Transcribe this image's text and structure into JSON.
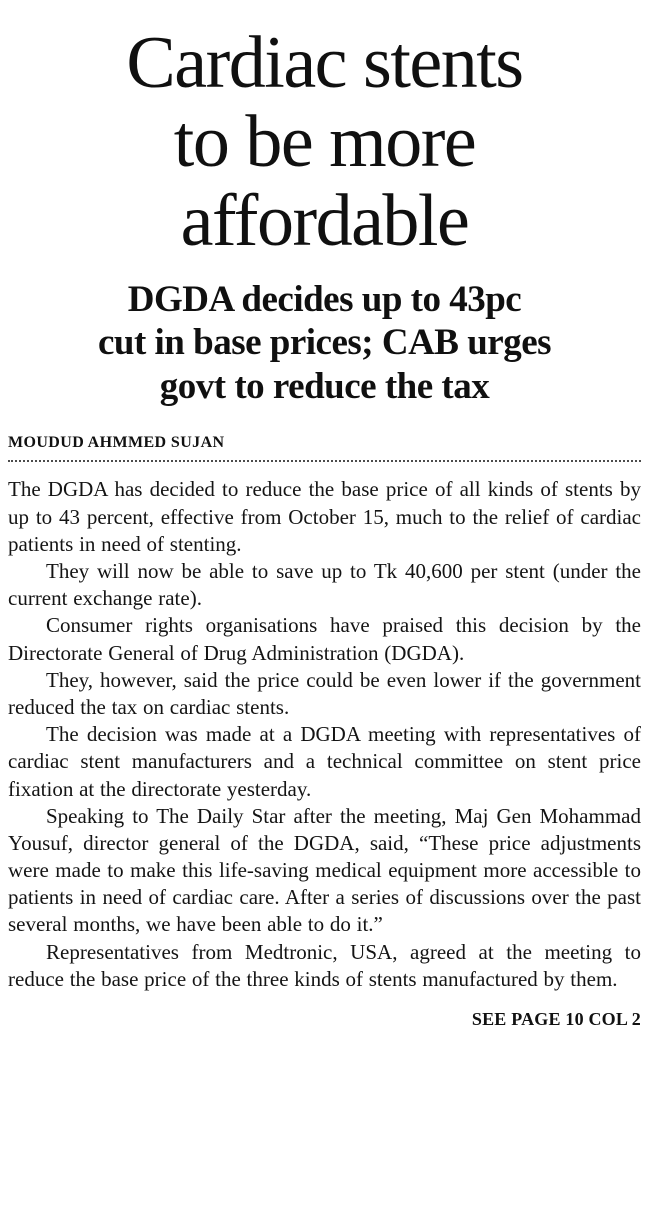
{
  "article": {
    "headline_lines": [
      "Cardiac stents",
      "to be more",
      "affordable"
    ],
    "subheadline_lines": [
      "DGDA decides up to 43pc",
      "cut in base prices; CAB urges",
      "govt to reduce the tax"
    ],
    "byline": "MOUDUD AHMMED SUJAN",
    "paragraphs": [
      "The DGDA has decided to reduce the base price of all kinds of stents by up to 43 percent, effective from October 15, much to the relief of cardiac patients in need of stenting.",
      "They will now be able to save up to Tk 40,600 per stent (under the current exchange rate).",
      "Consumer rights organisations have praised this decision by the Directorate General of Drug Administration (DGDA).",
      "They, however, said the price could be even lower if the government reduced the tax on cardiac stents.",
      "The decision was made at a DGDA meeting with representatives of cardiac stent manufacturers and a technical committee on stent price fixation at the directorate yesterday.",
      "Speaking to The Daily Star after the meeting, Maj Gen Mohammad Yousuf, director general of the DGDA, said, “These price adjustments were made to make this life-saving medical equipment more accessible to patients in need of cardiac care. After a series of discussions over the past several months, we have been able to do it.”",
      "Representatives from Medtronic, USA, agreed at the meeting to reduce the base price of the three kinds of stents manufactured by them."
    ],
    "continuation": "SEE PAGE 10 COL 2"
  }
}
